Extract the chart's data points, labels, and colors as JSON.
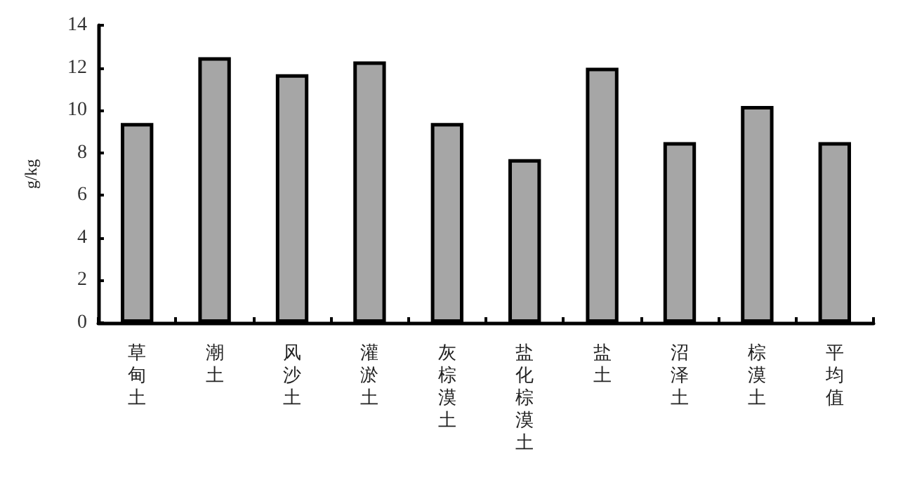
{
  "chart_data": {
    "type": "bar",
    "ylabel": "g/kg",
    "categories": [
      "草甸土",
      "潮土",
      "风沙土",
      "灌淤土",
      "灰棕漠土",
      "盐化棕漠土",
      "盐土",
      "沼泽土",
      "棕漠土",
      "平均值"
    ],
    "values": [
      9.4,
      12.5,
      11.7,
      12.3,
      9.4,
      7.7,
      12.0,
      8.5,
      10.2,
      8.5
    ],
    "color": "#a6a6a6",
    "ylim": [
      0,
      14
    ],
    "yticks": [
      0,
      2,
      4,
      6,
      8,
      10,
      12,
      14
    ],
    "grid": false
  }
}
